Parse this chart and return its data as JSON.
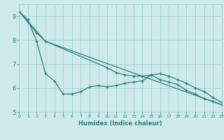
{
  "xlabel": "Humidex (Indice chaleur)",
  "bg_color": "#ceeaea",
  "line_color": "#2d7d7d",
  "grid_color": "#9ecece",
  "x_min": 0,
  "x_max": 23,
  "y_min": 5,
  "y_max": 9.5,
  "yticks": [
    5,
    6,
    7,
    8,
    9
  ],
  "line1_x": [
    0,
    1,
    2,
    3,
    4,
    5,
    6,
    7,
    8,
    9,
    10,
    11,
    12,
    13,
    14,
    15,
    16,
    17,
    18,
    19,
    20,
    21,
    22,
    23
  ],
  "line1_y": [
    9.2,
    8.85,
    7.95,
    6.6,
    6.3,
    5.75,
    5.75,
    5.85,
    6.05,
    6.1,
    6.05,
    6.1,
    6.2,
    6.25,
    6.3,
    6.55,
    6.35,
    6.25,
    6.15,
    5.9,
    5.75,
    5.55,
    5.45,
    5.3
  ],
  "line2_x": [
    0,
    2,
    3,
    10,
    11,
    12,
    13,
    14,
    15,
    16,
    17,
    18,
    19,
    20,
    21,
    22,
    23
  ],
  "line2_y": [
    9.2,
    8.3,
    7.95,
    6.85,
    6.65,
    6.55,
    6.5,
    6.5,
    6.55,
    6.6,
    6.5,
    6.35,
    6.2,
    6.0,
    5.85,
    5.6,
    5.4
  ],
  "line3_x": [
    0,
    3,
    23
  ],
  "line3_y": [
    9.2,
    7.95,
    5.3
  ]
}
